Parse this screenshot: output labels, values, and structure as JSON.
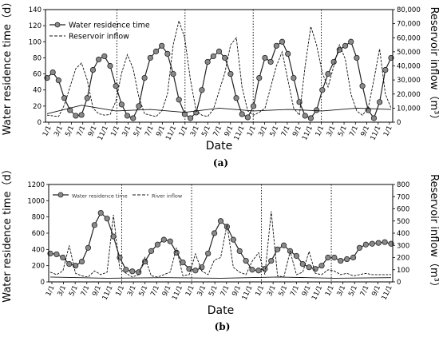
{
  "chart_data": [
    {
      "type": "line",
      "panel_label": "(a)",
      "xlabel": "Date",
      "ylabel_left": "Water residence time（d）",
      "ylabel_right": "Reservoir inflow（m³）",
      "left_ylim": [
        0,
        140
      ],
      "left_yticks": [
        "0",
        "20",
        "40",
        "60",
        "80",
        "100",
        "120",
        "140"
      ],
      "right_ylim": [
        0,
        80000
      ],
      "right_yticks": [
        "0",
        "10,000",
        "20,000",
        "30,000",
        "40,000",
        "50,000",
        "60,000",
        "70,000",
        "80,000"
      ],
      "xticks": [
        "1/1",
        "3/1",
        "5/1",
        "7/1",
        "9/1",
        "11/1",
        "1/1",
        "3/1",
        "5/1",
        "7/1",
        "9/1",
        "11/1",
        "1/1",
        "3/1",
        "5/1",
        "7/1",
        "9/1",
        "11/1",
        "1/1",
        "3/1",
        "5/1",
        "7/1",
        "9/1",
        "11/1",
        "1/1",
        "3/1",
        "5/1",
        "7/1",
        "9/1",
        "11/1",
        "1/1"
      ],
      "year_separators_at_tick": [
        6,
        12,
        18,
        24
      ],
      "legend": [
        "Water residence time",
        "Reservoir inflow"
      ],
      "series": [
        {
          "name": "Water residence time",
          "axis": "left",
          "style": "solid-with-circles",
          "points": [
            [
              0,
              55
            ],
            [
              1,
              62
            ],
            [
              2,
              52
            ],
            [
              3,
              30
            ],
            [
              4,
              15
            ],
            [
              5,
              8
            ],
            [
              6,
              9
            ],
            [
              7,
              30
            ],
            [
              8,
              65
            ],
            [
              9,
              78
            ],
            [
              10,
              82
            ],
            [
              11,
              70
            ],
            [
              12,
              45
            ],
            [
              13,
              22
            ],
            [
              14,
              8
            ],
            [
              15,
              5
            ],
            [
              16,
              20
            ],
            [
              17,
              55
            ],
            [
              18,
              80
            ],
            [
              19,
              88
            ],
            [
              20,
              95
            ],
            [
              21,
              85
            ],
            [
              22,
              60
            ],
            [
              23,
              28
            ],
            [
              24,
              10
            ],
            [
              25,
              5
            ],
            [
              26,
              12
            ],
            [
              27,
              40
            ],
            [
              28,
              75
            ],
            [
              29,
              82
            ],
            [
              30,
              88
            ],
            [
              31,
              80
            ],
            [
              32,
              60
            ],
            [
              33,
              30
            ],
            [
              34,
              10
            ],
            [
              35,
              6
            ],
            [
              36,
              20
            ],
            [
              37,
              55
            ],
            [
              38,
              80
            ],
            [
              39,
              75
            ],
            [
              40,
              95
            ],
            [
              41,
              100
            ],
            [
              42,
              85
            ],
            [
              43,
              55
            ],
            [
              44,
              25
            ],
            [
              45,
              8
            ],
            [
              46,
              5
            ],
            [
              47,
              15
            ],
            [
              48,
              40
            ],
            [
              49,
              60
            ],
            [
              50,
              75
            ],
            [
              51,
              90
            ],
            [
              52,
              95
            ],
            [
              53,
              100
            ],
            [
              54,
              80
            ],
            [
              55,
              45
            ],
            [
              56,
              15
            ],
            [
              57,
              5
            ],
            [
              58,
              25
            ],
            [
              59,
              65
            ],
            [
              60,
              80
            ]
          ]
        },
        {
          "name": "Reservoir inflow",
          "axis": "right",
          "style": "dashed",
          "points": [
            [
              0,
              5000
            ],
            [
              1,
              4500
            ],
            [
              2,
              4000
            ],
            [
              3,
              12000
            ],
            [
              4,
              25000
            ],
            [
              5,
              38000
            ],
            [
              6,
              42000
            ],
            [
              7,
              30000
            ],
            [
              8,
              10000
            ],
            [
              9,
              6000
            ],
            [
              10,
              5000
            ],
            [
              11,
              5500
            ],
            [
              12,
              15000
            ],
            [
              13,
              35000
            ],
            [
              14,
              48000
            ],
            [
              15,
              38000
            ],
            [
              16,
              18000
            ],
            [
              17,
              6000
            ],
            [
              18,
              5000
            ],
            [
              19,
              4000
            ],
            [
              20,
              8000
            ],
            [
              21,
              20000
            ],
            [
              22,
              55000
            ],
            [
              23,
              72000
            ],
            [
              24,
              60000
            ],
            [
              25,
              30000
            ],
            [
              26,
              8000
            ],
            [
              27,
              5000
            ],
            [
              28,
              4000
            ],
            [
              29,
              9000
            ],
            [
              30,
              22000
            ],
            [
              31,
              35000
            ],
            [
              32,
              55000
            ],
            [
              33,
              60000
            ],
            [
              34,
              25000
            ],
            [
              35,
              8000
            ],
            [
              36,
              5000
            ],
            [
              37,
              7000
            ],
            [
              38,
              10000
            ],
            [
              39,
              25000
            ],
            [
              40,
              40000
            ],
            [
              41,
              50000
            ],
            [
              42,
              30000
            ],
            [
              43,
              10000
            ],
            [
              44,
              5000
            ],
            [
              45,
              40000
            ],
            [
              46,
              68000
            ],
            [
              47,
              55000
            ],
            [
              48,
              35000
            ],
            [
              49,
              25000
            ],
            [
              50,
              40000
            ],
            [
              51,
              55000
            ],
            [
              52,
              45000
            ],
            [
              53,
              20000
            ],
            [
              54,
              8000
            ],
            [
              55,
              5000
            ],
            [
              56,
              10000
            ],
            [
              57,
              30000
            ],
            [
              58,
              52000
            ],
            [
              59,
              20000
            ],
            [
              60,
              10000
            ]
          ]
        },
        {
          "name": "",
          "axis": "right",
          "style": "thin-solid",
          "points": [
            [
              0,
              6000
            ],
            [
              6,
              12000
            ],
            [
              12,
              8000
            ],
            [
              18,
              9000
            ],
            [
              24,
              7000
            ],
            [
              30,
              10000
            ],
            [
              36,
              8000
            ],
            [
              42,
              9000
            ],
            [
              48,
              8000
            ],
            [
              54,
              10000
            ],
            [
              60,
              9000
            ]
          ]
        }
      ]
    },
    {
      "type": "line",
      "panel_label": "(b)",
      "xlabel": "Date",
      "ylabel_left": "Water residence time（d）",
      "ylabel_right": "Reservoir inflow（m³）",
      "left_ylim": [
        0,
        1200
      ],
      "left_yticks": [
        "0",
        "200",
        "400",
        "600",
        "800",
        "1000",
        "1200"
      ],
      "right_ylim": [
        0,
        800
      ],
      "right_yticks": [
        "0",
        "100",
        "200",
        "300",
        "400",
        "500",
        "600",
        "700",
        "800"
      ],
      "xticks": [
        "1/1",
        "3/1",
        "5/1",
        "7/1",
        "9/1",
        "11/1",
        "1/1",
        "3/1",
        "5/1",
        "7/1",
        "9/1",
        "11/1",
        "1/1",
        "3/1",
        "5/1",
        "7/1",
        "9/1",
        "11/1",
        "1/1",
        "3/1",
        "5/1",
        "7/1",
        "9/1",
        "11/1",
        "1/1",
        "3/1",
        "5/1",
        "7/1",
        "9/1",
        "11/1"
      ],
      "year_separators_at_tick": [
        6,
        12,
        18,
        24
      ],
      "legend": [
        "Water residence time",
        "River inflow"
      ],
      "series": [
        {
          "name": "Water residence time",
          "axis": "left",
          "style": "solid-with-circles",
          "points": [
            [
              0,
              350
            ],
            [
              1,
              340
            ],
            [
              2,
              300
            ],
            [
              3,
              220
            ],
            [
              4,
              200
            ],
            [
              5,
              250
            ],
            [
              6,
              420
            ],
            [
              7,
              700
            ],
            [
              8,
              850
            ],
            [
              9,
              780
            ],
            [
              10,
              560
            ],
            [
              11,
              300
            ],
            [
              12,
              150
            ],
            [
              13,
              130
            ],
            [
              14,
              120
            ],
            [
              15,
              250
            ],
            [
              16,
              380
            ],
            [
              17,
              460
            ],
            [
              18,
              520
            ],
            [
              19,
              500
            ],
            [
              20,
              360
            ],
            [
              21,
              240
            ],
            [
              22,
              160
            ],
            [
              23,
              140
            ],
            [
              24,
              180
            ],
            [
              25,
              350
            ],
            [
              26,
              600
            ],
            [
              27,
              750
            ],
            [
              28,
              680
            ],
            [
              29,
              520
            ],
            [
              30,
              380
            ],
            [
              31,
              260
            ],
            [
              32,
              150
            ],
            [
              33,
              140
            ],
            [
              34,
              160
            ],
            [
              35,
              260
            ],
            [
              36,
              400
            ],
            [
              37,
              450
            ],
            [
              38,
              380
            ],
            [
              39,
              320
            ],
            [
              40,
              220
            ],
            [
              41,
              180
            ],
            [
              42,
              160
            ],
            [
              43,
              200
            ],
            [
              44,
              300
            ],
            [
              45,
              300
            ],
            [
              46,
              260
            ],
            [
              47,
              280
            ],
            [
              48,
              300
            ],
            [
              49,
              420
            ],
            [
              50,
              460
            ],
            [
              51,
              470
            ],
            [
              52,
              480
            ],
            [
              53,
              490
            ],
            [
              54,
              470
            ]
          ]
        },
        {
          "name": "River inflow",
          "axis": "right",
          "style": "dashed",
          "points": [
            [
              0,
              80
            ],
            [
              1,
              60
            ],
            [
              2,
              90
            ],
            [
              3,
              300
            ],
            [
              4,
              70
            ],
            [
              5,
              50
            ],
            [
              6,
              40
            ],
            [
              7,
              90
            ],
            [
              8,
              60
            ],
            [
              9,
              80
            ],
            [
              10,
              550
            ],
            [
              11,
              110
            ],
            [
              12,
              70
            ],
            [
              13,
              40
            ],
            [
              14,
              60
            ],
            [
              15,
              200
            ],
            [
              16,
              50
            ],
            [
              17,
              40
            ],
            [
              18,
              60
            ],
            [
              19,
              80
            ],
            [
              20,
              280
            ],
            [
              21,
              50
            ],
            [
              22,
              60
            ],
            [
              23,
              230
            ],
            [
              24,
              90
            ],
            [
              25,
              60
            ],
            [
              26,
              180
            ],
            [
              27,
              200
            ],
            [
              28,
              470
            ],
            [
              29,
              120
            ],
            [
              30,
              80
            ],
            [
              31,
              60
            ],
            [
              32,
              170
            ],
            [
              33,
              240
            ],
            [
              34,
              60
            ],
            [
              35,
              580
            ],
            [
              36,
              50
            ],
            [
              37,
              40
            ],
            [
              38,
              250
            ],
            [
              39,
              60
            ],
            [
              40,
              80
            ],
            [
              41,
              250
            ],
            [
              42,
              70
            ],
            [
              43,
              60
            ],
            [
              44,
              100
            ],
            [
              45,
              90
            ],
            [
              46,
              60
            ],
            [
              47,
              70
            ],
            [
              48,
              50
            ],
            [
              49,
              60
            ],
            [
              50,
              70
            ],
            [
              51,
              60
            ],
            [
              52,
              60
            ],
            [
              53,
              60
            ],
            [
              54,
              60
            ]
          ]
        },
        {
          "name": "",
          "axis": "right",
          "style": "thin-solid",
          "points": [
            [
              0,
              40
            ],
            [
              9,
              30
            ],
            [
              18,
              35
            ],
            [
              27,
              30
            ],
            [
              36,
              40
            ],
            [
              45,
              30
            ],
            [
              54,
              35
            ]
          ]
        }
      ]
    }
  ]
}
